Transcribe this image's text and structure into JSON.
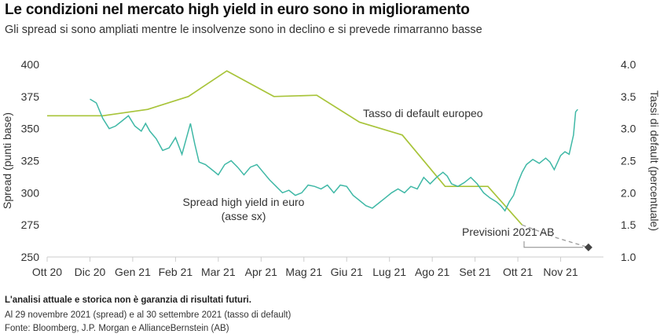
{
  "title": "Le condizioni nel mercato high yield in euro sono in miglioramento",
  "subtitle": "Gli spread si sono ampliati mentre le insolvenze sono in declino e si prevede rimarranno basse",
  "footnotes": {
    "disclaimer": "L'analisi attuale e storica non è garanzia di risultati futuri.",
    "dates": "Al 29 novembre 2021 (spread) e al 30 settembre 2021 (tasso di default)",
    "source": "Fonte: Bloomberg, J.P. Morgan e AllianceBernstein (AB)"
  },
  "colors": {
    "spread": "#3fb8a6",
    "default": "#a8c43a",
    "forecast": "#999999",
    "marker": "#444444",
    "axis": "#cccccc"
  },
  "chart_data": {
    "type": "line",
    "xlabel": "",
    "ylabel": "Spread (punti base)",
    "y2label": "Tassi di default (percentuale)",
    "ylim": [
      250,
      400
    ],
    "y2lim": [
      1.0,
      4.0
    ],
    "xlim": [
      0,
      13
    ],
    "x_ticks": [
      "Ott 20",
      "Dic 20",
      "Gen 21",
      "Feb 21",
      "Mar 21",
      "Apr 21",
      "Mag 21",
      "Giu 21",
      "Lug 21",
      "Ago 21",
      "Set 21",
      "Ott 21",
      "Nov 21"
    ],
    "y_ticks": [
      250,
      275,
      300,
      325,
      350,
      375,
      400
    ],
    "y2_ticks": [
      "1.0",
      "1.5",
      "2.0",
      "2.5",
      "3.0",
      "3.5",
      "4.0"
    ],
    "grid": false,
    "series": [
      {
        "name": "Tasso di default europeo",
        "axis": "right",
        "label": "Tasso di default europeo",
        "points": [
          [
            0,
            3.2
          ],
          [
            1.3,
            3.2
          ],
          [
            2.35,
            3.3
          ],
          [
            3.3,
            3.5
          ],
          [
            4.2,
            3.9
          ],
          [
            5.3,
            3.5
          ],
          [
            6.3,
            3.52
          ],
          [
            7.3,
            3.1
          ],
          [
            8.3,
            2.9
          ],
          [
            9.3,
            2.1
          ],
          [
            10.3,
            2.1
          ],
          [
            11.1,
            1.5
          ]
        ]
      },
      {
        "name": "Spread high yield in euro",
        "axis": "left",
        "label": [
          "Spread high yield in euro",
          "(asse sx)"
        ],
        "points": [
          [
            1.0,
            373
          ],
          [
            1.15,
            370
          ],
          [
            1.3,
            358
          ],
          [
            1.45,
            350
          ],
          [
            1.6,
            352
          ],
          [
            1.75,
            356
          ],
          [
            1.9,
            360
          ],
          [
            2.05,
            352
          ],
          [
            2.2,
            348
          ],
          [
            2.3,
            354
          ],
          [
            2.4,
            348
          ],
          [
            2.55,
            342
          ],
          [
            2.7,
            333
          ],
          [
            2.85,
            335
          ],
          [
            3.0,
            343
          ],
          [
            3.15,
            330
          ],
          [
            3.25,
            342
          ],
          [
            3.35,
            354
          ],
          [
            3.45,
            338
          ],
          [
            3.55,
            324
          ],
          [
            3.7,
            322
          ],
          [
            3.85,
            318
          ],
          [
            4.0,
            314
          ],
          [
            4.15,
            322
          ],
          [
            4.3,
            325
          ],
          [
            4.45,
            320
          ],
          [
            4.6,
            314
          ],
          [
            4.75,
            320
          ],
          [
            4.9,
            322
          ],
          [
            5.05,
            316
          ],
          [
            5.2,
            310
          ],
          [
            5.35,
            305
          ],
          [
            5.5,
            300
          ],
          [
            5.65,
            302
          ],
          [
            5.8,
            298
          ],
          [
            5.95,
            300
          ],
          [
            6.1,
            306
          ],
          [
            6.25,
            305
          ],
          [
            6.4,
            303
          ],
          [
            6.55,
            306
          ],
          [
            6.7,
            300
          ],
          [
            6.85,
            306
          ],
          [
            7.0,
            305
          ],
          [
            7.15,
            298
          ],
          [
            7.3,
            294
          ],
          [
            7.45,
            290
          ],
          [
            7.6,
            288
          ],
          [
            7.75,
            292
          ],
          [
            7.9,
            296
          ],
          [
            8.05,
            300
          ],
          [
            8.2,
            303
          ],
          [
            8.35,
            300
          ],
          [
            8.5,
            305
          ],
          [
            8.65,
            303
          ],
          [
            8.8,
            312
          ],
          [
            8.95,
            307
          ],
          [
            9.1,
            312
          ],
          [
            9.25,
            316
          ],
          [
            9.35,
            313
          ],
          [
            9.45,
            307
          ],
          [
            9.6,
            305
          ],
          [
            9.75,
            308
          ],
          [
            9.9,
            312
          ],
          [
            10.05,
            307
          ],
          [
            10.2,
            300
          ],
          [
            10.35,
            296
          ],
          [
            10.5,
            293
          ],
          [
            10.6,
            290
          ],
          [
            10.7,
            286
          ],
          [
            10.8,
            293
          ],
          [
            10.9,
            298
          ],
          [
            11.0,
            308
          ],
          [
            11.1,
            316
          ],
          [
            11.2,
            322
          ],
          [
            11.35,
            326
          ],
          [
            11.5,
            323
          ],
          [
            11.65,
            327
          ],
          [
            11.75,
            324
          ],
          [
            11.85,
            318
          ],
          [
            12.0,
            329
          ],
          [
            12.1,
            332
          ],
          [
            12.2,
            330
          ],
          [
            12.3,
            345
          ],
          [
            12.35,
            363
          ],
          [
            12.4,
            365
          ]
        ]
      },
      {
        "name": "Previsioni 2021 AB",
        "axis": "right",
        "dashed": true,
        "label": "Previsioni 2021 AB",
        "points": [
          [
            11.1,
            1.5
          ],
          [
            11.9,
            1.3
          ],
          [
            12.65,
            1.15
          ]
        ]
      }
    ]
  }
}
